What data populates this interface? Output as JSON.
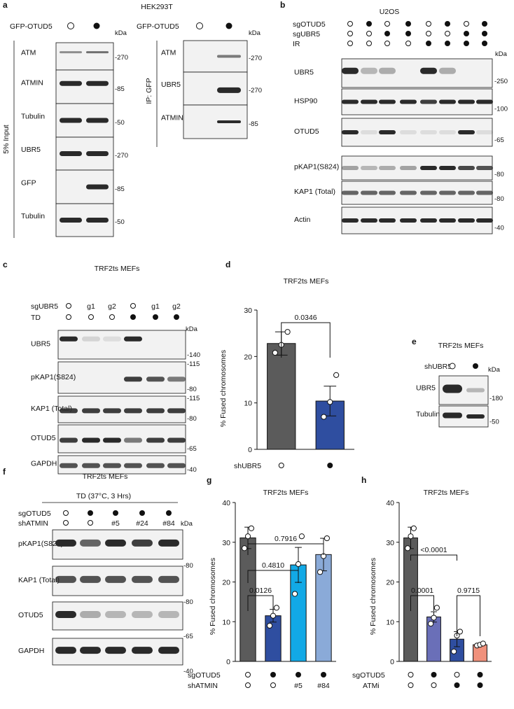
{
  "panels": {
    "a": {
      "letter": "a",
      "cell": "HEK293T",
      "gfp_label": "GFP-OTUD5",
      "gfp_label_ip": "GFP-OTUD5",
      "input_side": "5% Input",
      "ip_side": "IP: GFP",
      "kda": "kDa",
      "kda_ip": "kDa",
      "input_blots": [
        {
          "name": "ATM",
          "marker": "-270"
        },
        {
          "name": "ATMIN",
          "marker": "-85"
        },
        {
          "name": "Tubulin",
          "marker": "-50"
        },
        {
          "name": "UBR5",
          "marker": "-270"
        },
        {
          "name": "GFP",
          "marker": "-85"
        },
        {
          "name": "Tubulin",
          "marker": "-50"
        }
      ],
      "ip_blots": [
        {
          "name": "ATM",
          "marker": "-270"
        },
        {
          "name": "UBR5",
          "marker": "-270"
        },
        {
          "name": "ATMIN",
          "marker": "-85"
        }
      ]
    },
    "b": {
      "letter": "b",
      "cell": "U2OS",
      "rows": [
        "sgOTUD5",
        "sgUBR5",
        "IR"
      ],
      "kda": "kDa",
      "blots": [
        {
          "name": "UBR5",
          "marker": "-250"
        },
        {
          "name": "HSP90",
          "marker": "-100"
        },
        {
          "name": "OTUD5",
          "marker": "-65"
        },
        {
          "name": "pKAP1(S824)",
          "marker": "-80"
        },
        {
          "name": "KAP1 (Total)",
          "marker": "-80"
        },
        {
          "name": "Actin",
          "marker": "-40"
        }
      ]
    },
    "c": {
      "letter": "c",
      "cell": "TRF2ts MEFs",
      "row1": "sgUBR5",
      "row2": "TD",
      "lanes1": [
        "o",
        "g1",
        "g2",
        "o",
        "g1",
        "g2"
      ],
      "kda": "kDa",
      "blots": [
        {
          "name": "UBR5",
          "marker": "-140",
          "marker2": ""
        },
        {
          "name": "pKAP1(S824)",
          "marker": "-80",
          "marker2": "-115"
        },
        {
          "name": "KAP1 (Total)",
          "marker": "-80",
          "marker2": "-115"
        },
        {
          "name": "OTUD5",
          "marker": "-65",
          "marker2": ""
        },
        {
          "name": "GAPDH",
          "marker": "-40",
          "marker2": ""
        }
      ]
    },
    "d": {
      "letter": "d",
      "title": "TRF2ts MEFs",
      "ylabel": "% Fused chromosomes",
      "xrow": "shUBR5",
      "pvalue": "0.0346"
    },
    "e": {
      "letter": "e",
      "title": "TRF2ts MEFs",
      "row": "shUBR5",
      "kda": "kDa",
      "blots": [
        {
          "name": "UBR5",
          "marker": "-180"
        },
        {
          "name": "Tubulin",
          "marker": "-50"
        }
      ]
    },
    "f": {
      "letter": "f",
      "cell": "TRF2ts MEFs",
      "condition": "TD (37°C, 3 Hrs)",
      "row1": "sgOTUD5",
      "row2": "shATMIN",
      "lanes2": [
        "",
        "",
        "#5",
        "#24",
        "#84"
      ],
      "kda": "kDa",
      "blots": [
        {
          "name": "pKAP1(S824)",
          "marker": "-80"
        },
        {
          "name": "KAP1 (Total)",
          "marker": "-80"
        },
        {
          "name": "OTUD5",
          "marker": "-65"
        },
        {
          "name": "GAPDH",
          "marker": "-40"
        }
      ]
    },
    "g": {
      "letter": "g",
      "title": "TRF2ts MEFs",
      "ylabel": "% Fused chromosomes",
      "xrow1": "sgOTUD5",
      "xrow2": "shATMIN",
      "lanes2": [
        "",
        "",
        "#5",
        "#84"
      ],
      "pvalues": [
        "0.0126",
        "0.4810",
        "0.7916"
      ]
    },
    "h": {
      "letter": "h",
      "title": "TRF2ts MEFs",
      "ylabel": "% Fused chromosomes",
      "xrow1": "sgOTUD5",
      "xrow2": "ATMi",
      "pvalues": [
        "0.0001",
        "<0.0001",
        "0.9715"
      ]
    }
  },
  "colors": {
    "dark_gray": "#5b5b5b",
    "navy": "#2f4ea0",
    "cyan": "#12a9e6",
    "light_blue": "#8aaad8",
    "lavender": "#6a6fb8",
    "salmon": "#f0917c"
  },
  "chart_data": [
    {
      "type": "bar",
      "panel": "d",
      "title": "TRF2ts MEFs",
      "ylabel": "% Fused chromosomes",
      "ylim": [
        0,
        30
      ],
      "yticks": [
        0,
        10,
        20,
        30
      ],
      "categories": [
        "o",
        "●"
      ],
      "values": [
        22.8,
        10.4
      ],
      "errors": [
        2.5,
        3.2
      ],
      "points": [
        [
          20.8,
          22.5,
          25.3
        ],
        [
          7.0,
          10.2,
          16.0
        ]
      ],
      "colors": [
        "#5b5b5b",
        "#2f4ea0"
      ]
    },
    {
      "type": "bar",
      "panel": "g",
      "title": "TRF2ts MEFs",
      "ylabel": "% Fused chromosomes",
      "ylim": [
        0,
        40
      ],
      "yticks": [
        0,
        10,
        20,
        30,
        40
      ],
      "categories": [
        "o/o",
        "●/o",
        "●/#5",
        "●/#84"
      ],
      "values": [
        31.1,
        11.5,
        24.3,
        26.9
      ],
      "errors": [
        2.7,
        1.6,
        4.4,
        4.1
      ],
      "points": [
        [
          28.5,
          31.5,
          33.5
        ],
        [
          9.0,
          11.5,
          13.5
        ],
        [
          17.0,
          24.5,
          31.5
        ],
        [
          22.5,
          26.5,
          31.0
        ]
      ],
      "colors": [
        "#5b5b5b",
        "#2f4ea0",
        "#12a9e6",
        "#8aaad8"
      ]
    },
    {
      "type": "bar",
      "panel": "h",
      "title": "TRF2ts MEFs",
      "ylabel": "% Fused chromosomes",
      "ylim": [
        0,
        40
      ],
      "yticks": [
        0,
        10,
        20,
        30,
        40
      ],
      "categories": [
        "o/o",
        "●/o",
        "o/●",
        "●/●"
      ],
      "values": [
        31.1,
        11.2,
        5.6,
        4.2
      ],
      "errors": [
        2.7,
        1.3,
        1.9,
        0.3
      ],
      "points": [
        [
          28.5,
          31.5,
          33.5
        ],
        [
          9.5,
          11.0,
          13.5
        ],
        [
          2.5,
          6.5,
          7.5
        ],
        [
          4.0,
          4.2,
          4.5
        ]
      ],
      "colors": [
        "#5b5b5b",
        "#6a6fb8",
        "#2f4ea0",
        "#f0917c"
      ]
    }
  ]
}
